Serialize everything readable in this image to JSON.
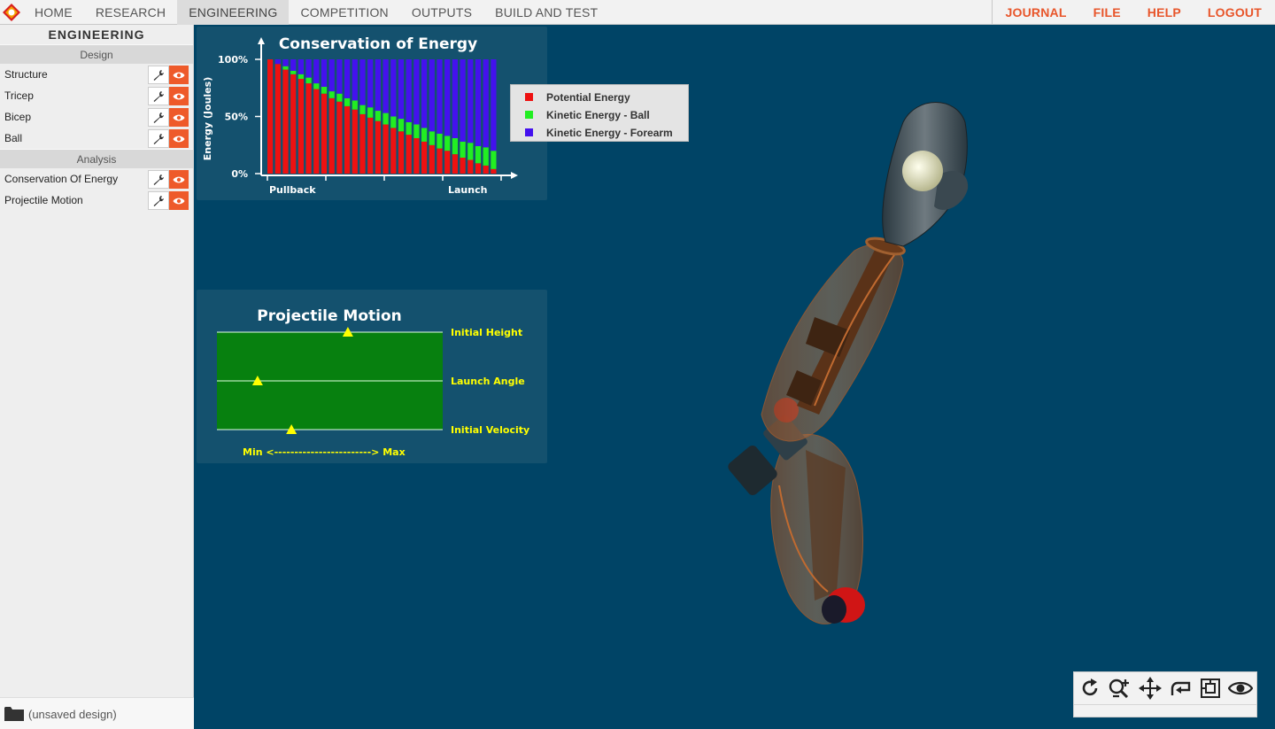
{
  "nav": {
    "left": [
      "HOME",
      "RESEARCH",
      "ENGINEERING",
      "COMPETITION",
      "OUTPUTS",
      "BUILD AND TEST"
    ],
    "active": "ENGINEERING",
    "right": [
      "JOURNAL",
      "FILE",
      "HELP",
      "LOGOUT"
    ]
  },
  "sidebar": {
    "title": "ENGINEERING",
    "design_header": "Design",
    "design_items": [
      "Structure",
      "Tricep",
      "Bicep",
      "Ball"
    ],
    "analysis_header": "Analysis",
    "analysis_items": [
      "Conservation Of Energy",
      "Projectile Motion"
    ],
    "footer_text": "(unsaved design)"
  },
  "energy_chart": {
    "title": "Conservation of Energy",
    "ylabel": "Energy (Joules)",
    "xlabels": [
      "Pullback",
      "Launch"
    ]
  },
  "legend": [
    "Potential Energy",
    "Kinetic Energy - Ball",
    "Kinetic Energy - Forearm"
  ],
  "projectile": {
    "title": "Projectile Motion",
    "labels": [
      "Initial Height",
      "Launch Angle",
      "Initial Velocity"
    ],
    "range_label": "Min <------------------------> Max"
  },
  "chart_data": [
    {
      "type": "bar",
      "title": "Conservation of Energy",
      "ylabel": "Energy (Joules)",
      "stacked": true,
      "categories": [
        "Pullback",
        "",
        "",
        "",
        "",
        "",
        "",
        "",
        "",
        "",
        "",
        "",
        "",
        "",
        "",
        "",
        "",
        "",
        "",
        "",
        "",
        "",
        "",
        "",
        "",
        "",
        "",
        "",
        "",
        "Launch"
      ],
      "ylim": [
        0,
        100
      ],
      "yticks": [
        "0%",
        "50%",
        "100%"
      ],
      "series": [
        {
          "name": "Potential Energy",
          "color": "#ee1111",
          "values": [
            100,
            96,
            91,
            87,
            83,
            79,
            74,
            70,
            66,
            63,
            59,
            56,
            52,
            49,
            46,
            43,
            40,
            37,
            34,
            31,
            28,
            25,
            22,
            20,
            17,
            14,
            12,
            9,
            7,
            4
          ]
        },
        {
          "name": "Kinetic Energy - Ball",
          "color": "#22ee22",
          "values": [
            0,
            0,
            3,
            3,
            4,
            5,
            5,
            6,
            6,
            7,
            7,
            8,
            8,
            9,
            9,
            10,
            10,
            11,
            11,
            12,
            12,
            12,
            13,
            13,
            14,
            14,
            15,
            15,
            16,
            16
          ]
        },
        {
          "name": "Kinetic Energy - Forearm",
          "color": "#4411ee",
          "values": [
            0,
            4,
            6,
            10,
            13,
            16,
            21,
            24,
            28,
            30,
            34,
            36,
            40,
            42,
            45,
            47,
            50,
            52,
            55,
            57,
            60,
            63,
            65,
            67,
            69,
            72,
            73,
            76,
            77,
            80
          ]
        }
      ],
      "legend_position": "right"
    },
    {
      "type": "scatter",
      "title": "Projectile Motion",
      "categories": [
        "Initial Height",
        "Launch Angle",
        "Initial Velocity"
      ],
      "values": [
        0.58,
        0.18,
        0.33
      ],
      "xlim": [
        0,
        1
      ],
      "xlabel": "Min <------------------------> Max"
    }
  ],
  "colors": {
    "accent": "#e8552a",
    "background": "#004466",
    "panel": "#14516e",
    "projectile_bg": "#07800f",
    "marker": "#ffff00"
  },
  "tools": [
    "rotate-icon",
    "zoom-icon",
    "pan-icon",
    "reset-view-icon",
    "fit-view-icon",
    "visibility-icon"
  ]
}
